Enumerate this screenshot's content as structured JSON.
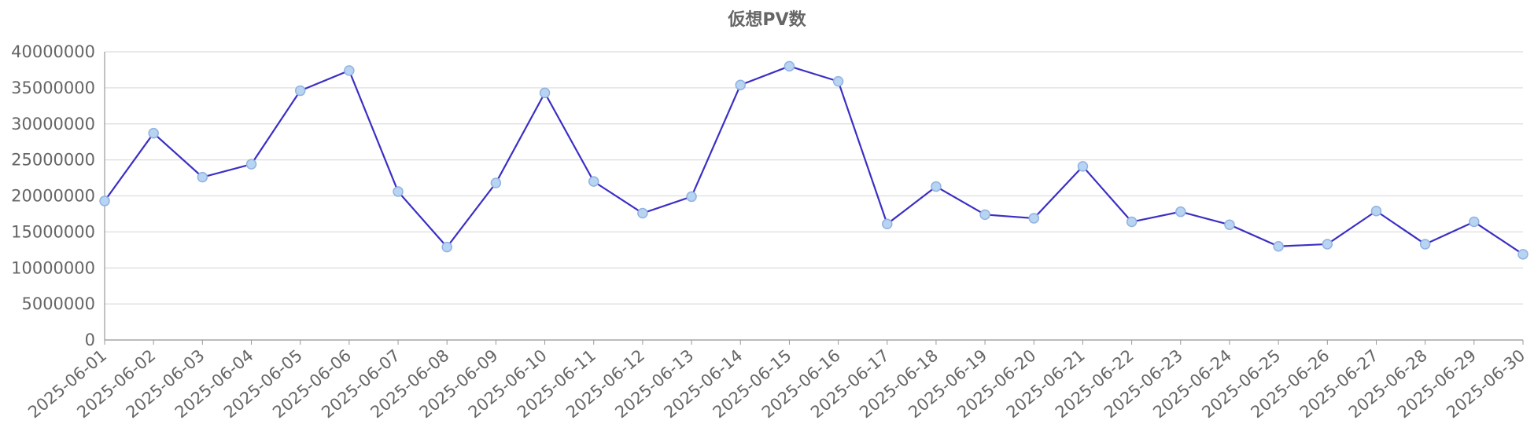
{
  "chart_data": {
    "type": "line",
    "title": "仮想PV数",
    "categories": [
      "2025-06-01",
      "2025-06-02",
      "2025-06-03",
      "2025-06-04",
      "2025-06-05",
      "2025-06-06",
      "2025-06-07",
      "2025-06-08",
      "2025-06-09",
      "2025-06-10",
      "2025-06-11",
      "2025-06-12",
      "2025-06-13",
      "2025-06-14",
      "2025-06-15",
      "2025-06-16",
      "2025-06-17",
      "2025-06-18",
      "2025-06-19",
      "2025-06-20",
      "2025-06-21",
      "2025-06-22",
      "2025-06-23",
      "2025-06-24",
      "2025-06-25",
      "2025-06-26",
      "2025-06-27",
      "2025-06-28",
      "2025-06-29",
      "2025-06-30"
    ],
    "series": [
      {
        "name": "仮想PV数",
        "color": "#3b2fc4",
        "values": [
          19300000,
          28700000,
          22600000,
          24400000,
          34600000,
          37400000,
          20600000,
          12900000,
          21800000,
          34300000,
          22000000,
          17600000,
          19900000,
          35400000,
          38000000,
          35900000,
          16100000,
          21300000,
          17400000,
          16900000,
          24100000,
          16400000,
          17800000,
          16000000,
          13000000,
          13300000,
          17900000,
          13300000,
          16400000,
          11900000
        ]
      }
    ],
    "ylim": [
      0,
      40000000
    ],
    "yticks": [
      0,
      5000000,
      10000000,
      15000000,
      20000000,
      25000000,
      30000000,
      35000000,
      40000000
    ],
    "grid": true
  }
}
